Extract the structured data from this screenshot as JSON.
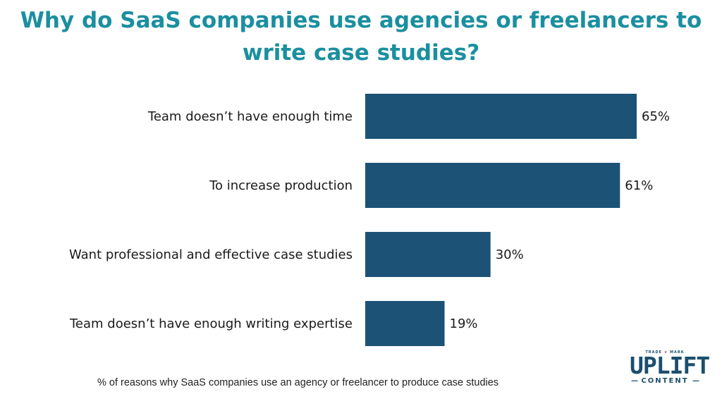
{
  "chart_data": {
    "type": "bar",
    "orientation": "horizontal",
    "title": "Why do SaaS companies use agencies or freelancers to write case studies?",
    "categories": [
      "Team doesn’t have enough time",
      "To increase production",
      "Want professional and effective case studies",
      "Team doesn’t have enough writing expertise"
    ],
    "values": [
      65,
      61,
      30,
      19
    ],
    "value_labels": [
      "65%",
      "61%",
      "30%",
      "19%"
    ],
    "unit": "%",
    "xlim": [
      0,
      65
    ],
    "grid": false,
    "bar_color": "#1c5276"
  },
  "footnote": "% of reasons why SaaS companies use an agency or freelancer to produce case studies",
  "logo": {
    "trademark_left": "TRADE",
    "trademark_right": "MARK",
    "name": "UPLIFT",
    "sub": "CONTENT"
  },
  "colors": {
    "title": "#1b8fa0",
    "bar": "#1c5276",
    "logo": "#1c4e6e"
  }
}
